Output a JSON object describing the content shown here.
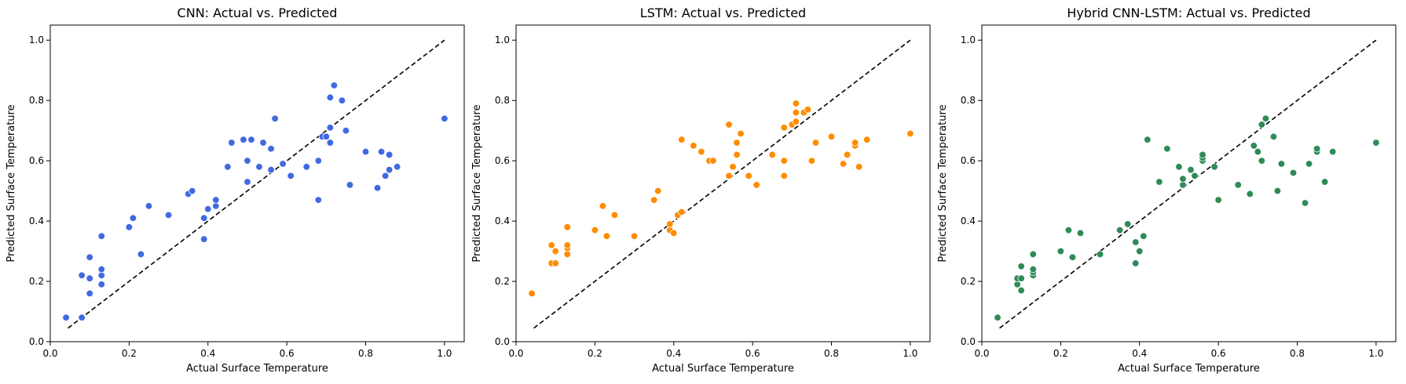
{
  "chart_data": [
    {
      "type": "scatter",
      "title": "CNN: Actual vs. Predicted",
      "xlabel": "Actual Surface Temperature",
      "ylabel": "Predicted Surface Temperature",
      "xlim": [
        0.0,
        1.05
      ],
      "ylim": [
        0.0,
        1.05
      ],
      "xticks": [
        "0.0",
        "0.2",
        "0.4",
        "0.6",
        "0.8",
        "1.0"
      ],
      "yticks": [
        "0.0",
        "0.2",
        "0.4",
        "0.6",
        "0.8",
        "1.0"
      ],
      "grid": false,
      "reference_line": {
        "from": [
          0.045,
          0.045
        ],
        "to": [
          1.0,
          1.0
        ],
        "style": "dashed",
        "color": "#000000"
      },
      "color": "#4169e1",
      "x": [
        0.04,
        0.08,
        0.08,
        0.1,
        0.1,
        0.1,
        0.13,
        0.13,
        0.13,
        0.13,
        0.2,
        0.21,
        0.23,
        0.25,
        0.3,
        0.35,
        0.36,
        0.39,
        0.39,
        0.4,
        0.42,
        0.42,
        0.45,
        0.46,
        0.49,
        0.5,
        0.5,
        0.51,
        0.53,
        0.54,
        0.56,
        0.56,
        0.57,
        0.59,
        0.61,
        0.65,
        0.68,
        0.68,
        0.69,
        0.7,
        0.71,
        0.71,
        0.71,
        0.72,
        0.74,
        0.75,
        0.76,
        0.8,
        0.83,
        0.84,
        0.85,
        0.86,
        0.86,
        0.88,
        1.0
      ],
      "y": [
        0.08,
        0.08,
        0.22,
        0.16,
        0.21,
        0.28,
        0.19,
        0.22,
        0.24,
        0.35,
        0.38,
        0.41,
        0.29,
        0.45,
        0.42,
        0.49,
        0.5,
        0.34,
        0.41,
        0.44,
        0.45,
        0.47,
        0.58,
        0.66,
        0.67,
        0.6,
        0.53,
        0.67,
        0.58,
        0.66,
        0.57,
        0.64,
        0.74,
        0.59,
        0.55,
        0.58,
        0.47,
        0.6,
        0.68,
        0.68,
        0.71,
        0.66,
        0.81,
        0.85,
        0.8,
        0.7,
        0.52,
        0.63,
        0.51,
        0.63,
        0.55,
        0.57,
        0.62,
        0.58,
        0.74
      ]
    },
    {
      "type": "scatter",
      "title": "LSTM: Actual vs. Predicted",
      "xlabel": "Actual Surface Temperature",
      "ylabel": "Predicted Surface Temperature",
      "xlim": [
        0.0,
        1.05
      ],
      "ylim": [
        0.0,
        1.05
      ],
      "xticks": [
        "0.0",
        "0.2",
        "0.4",
        "0.6",
        "0.8",
        "1.0"
      ],
      "yticks": [
        "0.0",
        "0.2",
        "0.4",
        "0.6",
        "0.8",
        "1.0"
      ],
      "grid": false,
      "reference_line": {
        "from": [
          0.045,
          0.045
        ],
        "to": [
          1.0,
          1.0
        ],
        "style": "dashed",
        "color": "#000000"
      },
      "color": "#ff8c00",
      "x": [
        0.04,
        0.09,
        0.09,
        0.1,
        0.1,
        0.13,
        0.13,
        0.13,
        0.13,
        0.2,
        0.22,
        0.23,
        0.25,
        0.3,
        0.35,
        0.36,
        0.39,
        0.39,
        0.4,
        0.41,
        0.42,
        0.42,
        0.45,
        0.47,
        0.49,
        0.5,
        0.5,
        0.54,
        0.54,
        0.55,
        0.56,
        0.56,
        0.57,
        0.59,
        0.61,
        0.65,
        0.68,
        0.68,
        0.68,
        0.7,
        0.71,
        0.71,
        0.71,
        0.73,
        0.74,
        0.75,
        0.76,
        0.8,
        0.83,
        0.84,
        0.86,
        0.86,
        0.87,
        0.89,
        1.0
      ],
      "y": [
        0.16,
        0.26,
        0.32,
        0.26,
        0.3,
        0.29,
        0.31,
        0.32,
        0.38,
        0.37,
        0.45,
        0.35,
        0.42,
        0.35,
        0.47,
        0.5,
        0.37,
        0.39,
        0.36,
        0.42,
        0.43,
        0.67,
        0.65,
        0.63,
        0.6,
        0.6,
        0.6,
        0.55,
        0.72,
        0.58,
        0.62,
        0.66,
        0.69,
        0.55,
        0.52,
        0.62,
        0.55,
        0.6,
        0.71,
        0.72,
        0.73,
        0.76,
        0.79,
        0.76,
        0.77,
        0.6,
        0.66,
        0.68,
        0.59,
        0.62,
        0.65,
        0.66,
        0.58,
        0.67,
        0.69
      ]
    },
    {
      "type": "scatter",
      "title": "Hybrid CNN-LSTM: Actual vs. Predicted",
      "xlabel": "Actual Surface Temperature",
      "ylabel": "Predicted Surface Temperature",
      "xlim": [
        0.0,
        1.05
      ],
      "ylim": [
        0.0,
        1.05
      ],
      "xticks": [
        "0.0",
        "0.2",
        "0.4",
        "0.6",
        "0.8",
        "1.0"
      ],
      "yticks": [
        "0.0",
        "0.2",
        "0.4",
        "0.6",
        "0.8",
        "1.0"
      ],
      "grid": false,
      "reference_line": {
        "from": [
          0.045,
          0.045
        ],
        "to": [
          1.0,
          1.0
        ],
        "style": "dashed",
        "color": "#000000"
      },
      "color": "#2e8b57",
      "x": [
        0.04,
        0.09,
        0.09,
        0.1,
        0.1,
        0.1,
        0.13,
        0.13,
        0.13,
        0.13,
        0.2,
        0.22,
        0.23,
        0.25,
        0.3,
        0.35,
        0.37,
        0.39,
        0.39,
        0.4,
        0.41,
        0.42,
        0.45,
        0.47,
        0.5,
        0.51,
        0.51,
        0.53,
        0.54,
        0.56,
        0.56,
        0.56,
        0.59,
        0.6,
        0.65,
        0.68,
        0.69,
        0.7,
        0.71,
        0.71,
        0.72,
        0.74,
        0.75,
        0.76,
        0.79,
        0.82,
        0.83,
        0.85,
        0.85,
        0.87,
        0.89,
        1.0
      ],
      "y": [
        0.08,
        0.19,
        0.21,
        0.17,
        0.21,
        0.25,
        0.22,
        0.23,
        0.24,
        0.29,
        0.3,
        0.37,
        0.28,
        0.36,
        0.29,
        0.37,
        0.39,
        0.26,
        0.33,
        0.3,
        0.35,
        0.67,
        0.53,
        0.64,
        0.58,
        0.52,
        0.54,
        0.57,
        0.55,
        0.6,
        0.61,
        0.62,
        0.58,
        0.47,
        0.52,
        0.49,
        0.65,
        0.63,
        0.6,
        0.72,
        0.74,
        0.68,
        0.5,
        0.59,
        0.56,
        0.46,
        0.59,
        0.63,
        0.64,
        0.53,
        0.63,
        0.66
      ]
    }
  ]
}
